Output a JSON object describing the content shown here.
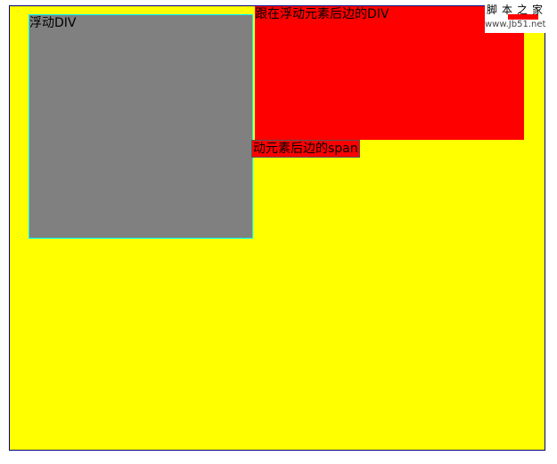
{
  "demo": {
    "float_div_label": "浮动DIV",
    "after_div_label": "跟在浮动元素后边的DIV",
    "after_span_label": "动元素后边的span"
  },
  "watermark": {
    "site_name": "脚本之家",
    "site_url": "www.Jb51.net"
  },
  "colors": {
    "container_bg": "#ffff00",
    "container_border": "#000080",
    "float_div_bg": "#808080",
    "float_div_border": "#00ffff",
    "after_div_bg": "#ff0000",
    "after_span_bg": "#ff0000"
  }
}
